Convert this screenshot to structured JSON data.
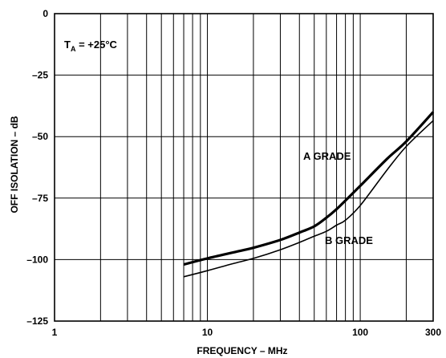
{
  "chart_data": {
    "type": "line",
    "xlabel": "FREQUENCY – MHz",
    "ylabel": "OFF ISOLATION – dB",
    "x_scale": "log",
    "xlim": [
      1,
      300
    ],
    "ylim": [
      -125,
      0
    ],
    "grid": true,
    "x_tick_labels": [
      "1",
      "10",
      "100",
      "300"
    ],
    "x_tick_values": [
      1,
      10,
      100,
      300
    ],
    "y_tick_labels": [
      "0",
      "–25",
      "–50",
      "–75",
      "–100",
      "–125"
    ],
    "y_tick_values": [
      0,
      -25,
      -50,
      -75,
      -100,
      -125
    ],
    "condition": {
      "main": "T",
      "sub": "A",
      "rest": " = +25°C"
    },
    "series": [
      {
        "name": "A GRADE",
        "line": "thick",
        "x": [
          7,
          10,
          15,
          20,
          30,
          40,
          50,
          60,
          70,
          80,
          100,
          150,
          200,
          300
        ],
        "y": [
          -102,
          -99.5,
          -97,
          -95.2,
          -92,
          -89,
          -86.5,
          -83,
          -79.5,
          -76,
          -70,
          -59,
          -52,
          -40
        ]
      },
      {
        "name": "B GRADE",
        "line": "thin",
        "x": [
          7,
          10,
          15,
          20,
          30,
          40,
          50,
          60,
          70,
          80,
          100,
          150,
          200,
          300
        ],
        "y": [
          -107,
          -104.5,
          -101.5,
          -99.5,
          -96,
          -93,
          -90.5,
          -88.5,
          -86,
          -84,
          -78,
          -63.5,
          -54,
          -43.5
        ]
      }
    ]
  }
}
